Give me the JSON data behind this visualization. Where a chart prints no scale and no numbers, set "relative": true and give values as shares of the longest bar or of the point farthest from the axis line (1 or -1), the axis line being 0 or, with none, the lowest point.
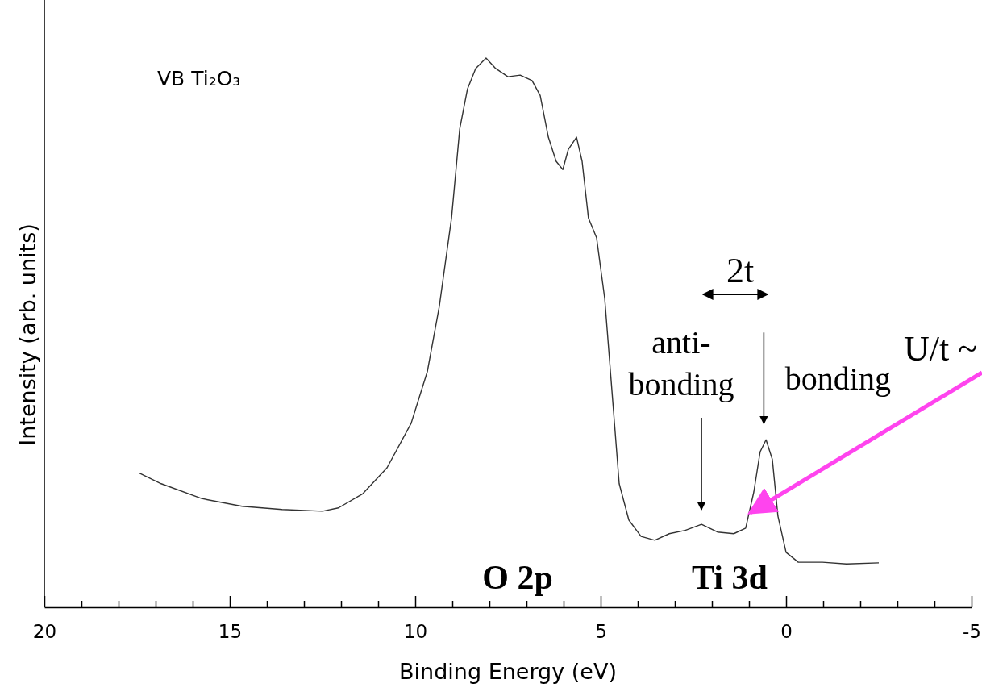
{
  "chart_data": {
    "type": "line",
    "relative": true,
    "xlabel": "Binding Energy (eV)",
    "ylabel": "Intensity (arb. units)",
    "xlim": [
      20,
      -5
    ],
    "xticks": [
      20,
      {
        "value": 19,
        "label": null
      },
      {
        "value": 18,
        "label": null
      },
      {
        "value": 17,
        "label": null
      },
      {
        "value": 16,
        "label": null
      },
      15,
      {
        "value": 14,
        "label": null
      },
      {
        "value": 13,
        "label": null
      },
      {
        "value": 12,
        "label": null
      },
      {
        "value": 11,
        "label": null
      },
      10,
      {
        "value": 9,
        "label": null
      },
      {
        "value": 8,
        "label": null
      },
      {
        "value": 7,
        "label": null
      },
      {
        "value": 6,
        "label": null
      },
      5,
      {
        "value": 4,
        "label": null
      },
      {
        "value": 3,
        "label": null
      },
      {
        "value": 2,
        "label": null
      },
      {
        "value": 1,
        "label": null
      },
      0,
      {
        "value": -1,
        "label": null
      },
      {
        "value": -2,
        "label": null
      },
      {
        "value": -3,
        "label": null
      },
      {
        "value": -4,
        "label": null
      },
      {
        "value": -5,
        "label": "-5"
      }
    ],
    "marker": "none",
    "line_style": "solid",
    "series": [
      {
        "color": "#333333",
        "x": [
          17.46,
          16.85,
          15.76,
          14.67,
          13.59,
          12.5,
          12.07,
          11.41,
          10.76,
          10.11,
          9.67,
          9.35,
          9.02,
          8.8,
          8.59,
          8.37,
          8.09,
          7.83,
          7.5,
          7.17,
          6.85,
          6.63,
          6.41,
          6.2,
          6.02,
          5.87,
          5.65,
          5.5,
          5.33,
          5.11,
          4.89,
          4.67,
          4.5,
          4.24,
          3.91,
          3.54,
          3.15,
          2.72,
          2.28,
          1.85,
          1.41,
          1.09,
          0.87,
          0.7,
          0.54,
          0.37,
          0.22,
          0,
          -0.33,
          -0.98,
          -1.63,
          -2.5
        ],
        "values": [
          0.245,
          0.225,
          0.198,
          0.184,
          0.178,
          0.175,
          0.181,
          0.207,
          0.254,
          0.335,
          0.43,
          0.548,
          0.709,
          0.871,
          0.944,
          0.981,
          1.0,
          0.981,
          0.966,
          0.969,
          0.959,
          0.932,
          0.856,
          0.812,
          0.797,
          0.834,
          0.856,
          0.812,
          0.709,
          0.673,
          0.562,
          0.372,
          0.225,
          0.159,
          0.129,
          0.122,
          0.134,
          0.14,
          0.151,
          0.137,
          0.134,
          0.144,
          0.21,
          0.283,
          0.305,
          0.269,
          0.166,
          0.1,
          0.082,
          0.082,
          0.079,
          0.081
        ]
      }
    ],
    "annotations": [
      "VB Ti₂O₃",
      "anti-\nbonding",
      {
        "text": "bonding",
        "x": 0.6,
        "y": 0.305
      },
      "2t",
      "O 2p",
      "Ti 3d",
      "U/t ~"
    ]
  }
}
